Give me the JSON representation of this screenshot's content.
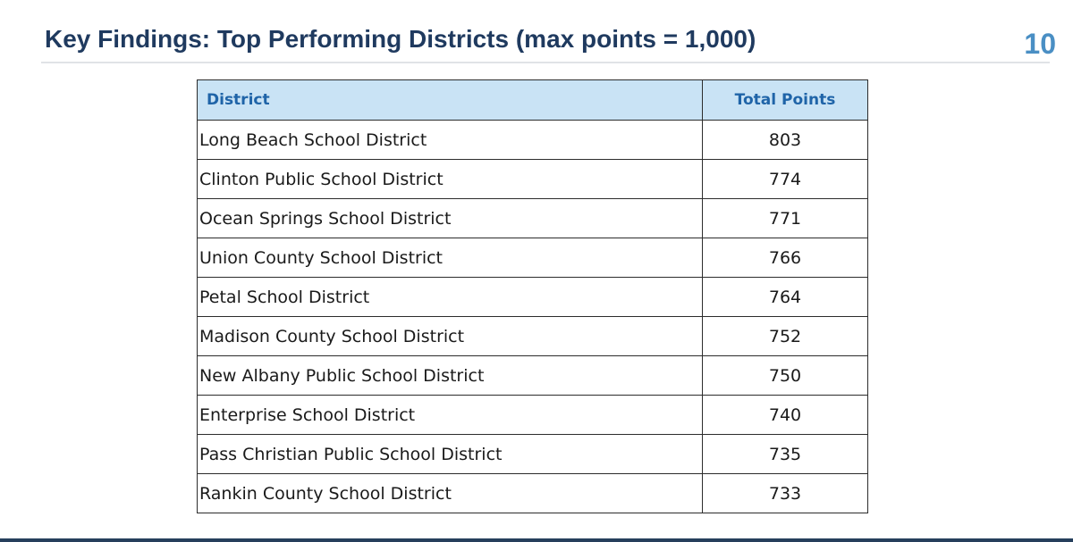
{
  "slide": {
    "title": "Key Findings: Top Performing Districts (max points = 1,000)",
    "number": "10"
  },
  "table": {
    "headers": {
      "district": "District",
      "points": "Total Points"
    },
    "rows": [
      {
        "district": "Long Beach School District",
        "points": "803"
      },
      {
        "district": "Clinton Public School District",
        "points": "774"
      },
      {
        "district": "Ocean Springs School District",
        "points": "771"
      },
      {
        "district": "Union County School District",
        "points": "766"
      },
      {
        "district": "Petal School District",
        "points": "764"
      },
      {
        "district": "Madison County School District",
        "points": "752"
      },
      {
        "district": "New Albany Public School District",
        "points": "750"
      },
      {
        "district": "Enterprise School District",
        "points": "740"
      },
      {
        "district": "Pass Christian Public School District",
        "points": "735"
      },
      {
        "district": "Rankin County School District",
        "points": "733"
      }
    ]
  },
  "colors": {
    "title": "#1f3a5f",
    "slide_number": "#4a8fc4",
    "header_bg": "#c9e3f5",
    "header_text": "#1f64a8",
    "bottom_bar": "#263f5c"
  }
}
